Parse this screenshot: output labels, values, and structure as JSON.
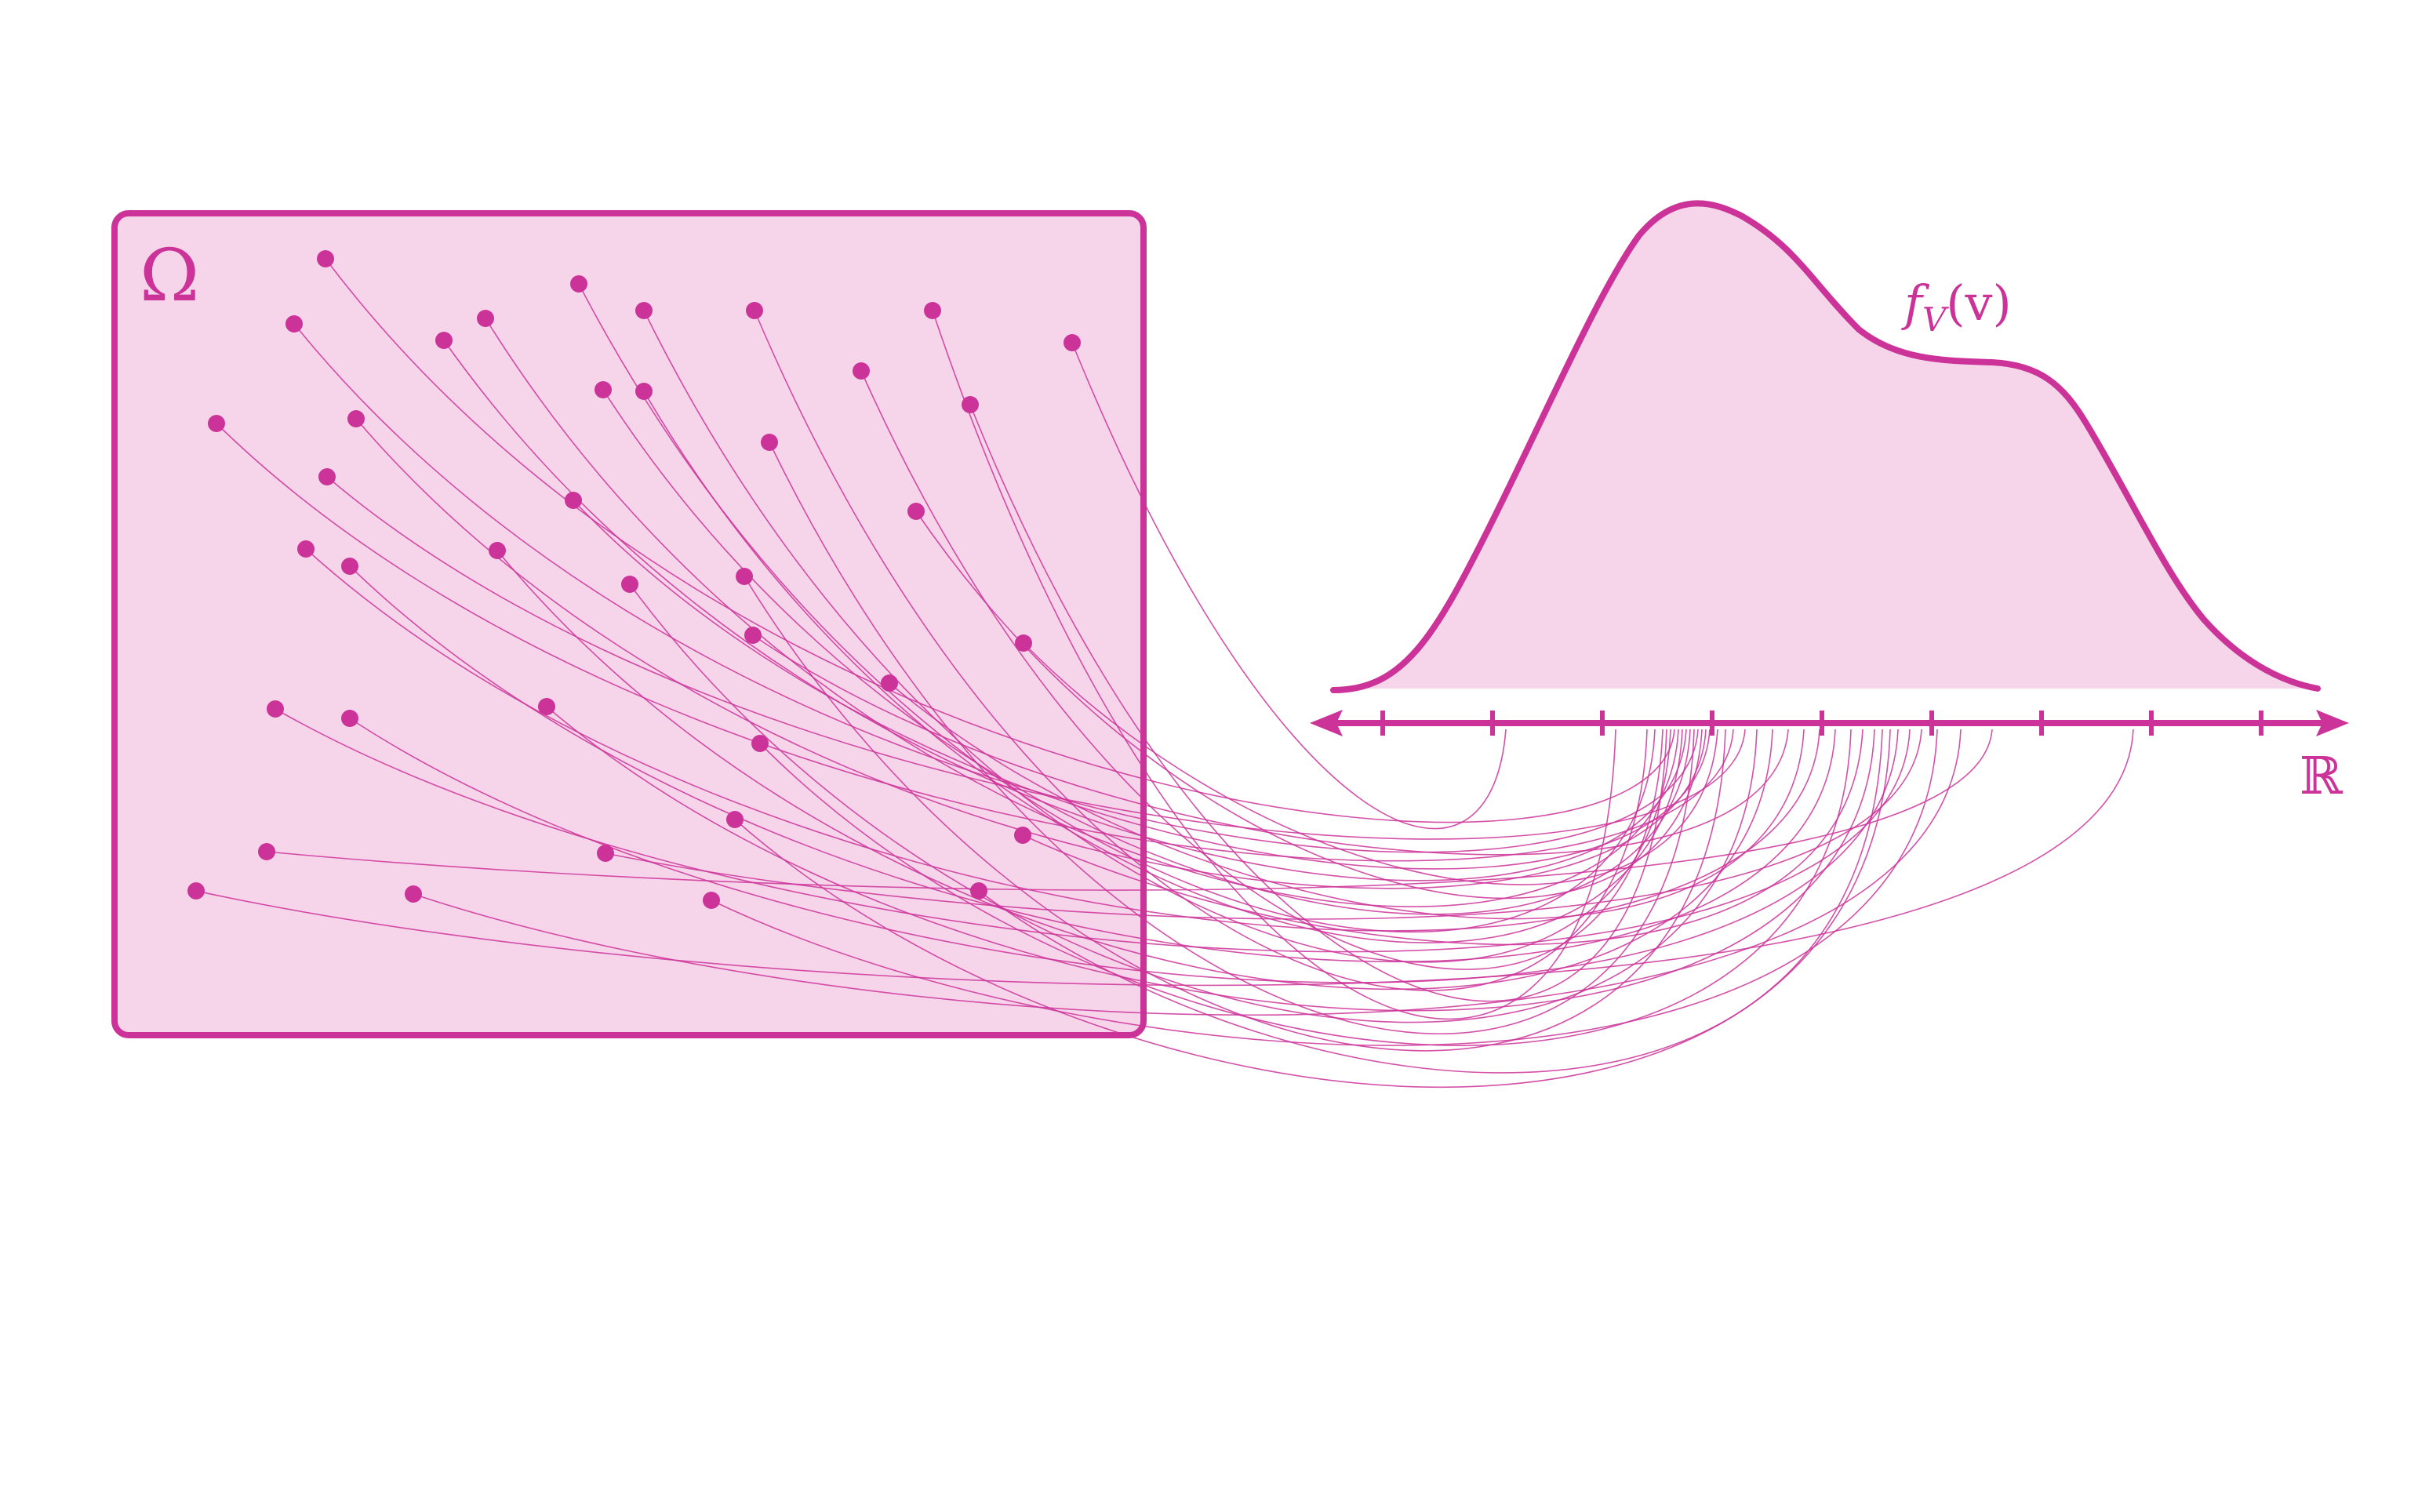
{
  "colors": {
    "accent": "#cc3399",
    "fill": "#f6d5ea",
    "background": "#ffffff"
  },
  "labels": {
    "sample_space": "Ω",
    "density_f": "f",
    "density_sub": "V",
    "density_arg": "(v)",
    "real_line": "ℝ"
  }
}
